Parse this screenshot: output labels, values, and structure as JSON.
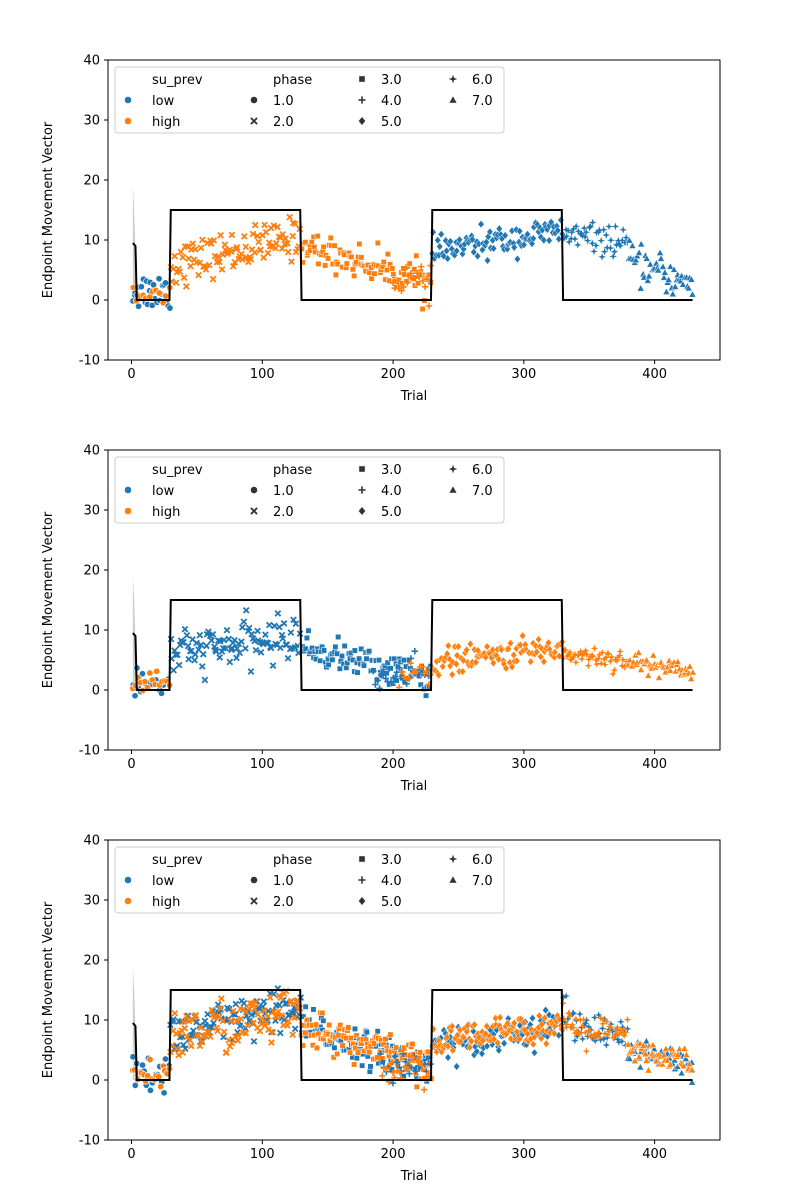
{
  "colors": {
    "low": "#1f77b4",
    "high": "#ff7f0e",
    "target": "#000000",
    "band": "#aaaaaa"
  },
  "legend": {
    "hue_title": "su_prev",
    "hue_entries": [
      {
        "label": "low",
        "key": "low"
      },
      {
        "label": "high",
        "key": "high"
      }
    ],
    "style_title": "phase",
    "style_entries": [
      {
        "label": "1.0",
        "marker": "circle"
      },
      {
        "label": "2.0",
        "marker": "x"
      },
      {
        "label": "3.0",
        "marker": "square"
      },
      {
        "label": "4.0",
        "marker": "plus"
      },
      {
        "label": "5.0",
        "marker": "diamond"
      },
      {
        "label": "6.0",
        "marker": "star"
      },
      {
        "label": "7.0",
        "marker": "triangle"
      }
    ],
    "placement": "upper-left"
  },
  "chart_data": [
    {
      "type": "scatter",
      "xlabel": "Trial",
      "ylabel": "Endpoint Movement Vector",
      "xlim": [
        -18,
        450
      ],
      "ylim": [
        -10,
        40
      ],
      "xticks": [
        0,
        100,
        200,
        300,
        400
      ],
      "yticks": [
        -10,
        0,
        10,
        20,
        30,
        40
      ],
      "target_line": {
        "x": [
          1,
          3,
          4,
          29,
          30,
          129,
          130,
          229,
          230,
          329,
          330,
          429
        ],
        "y": [
          9.5,
          9.0,
          0,
          0,
          15,
          15,
          0,
          0,
          15,
          15,
          0,
          0
        ]
      },
      "early_band": {
        "x": [
          1,
          2,
          3,
          4
        ],
        "ymin": [
          0,
          0,
          0,
          0
        ],
        "ymax": [
          19,
          15,
          8,
          0
        ]
      },
      "phase_series": [
        {
          "phase": "1.0",
          "su_prev": "low",
          "x_range": [
            1,
            29
          ],
          "y_start": 1.5,
          "y_end": 1.5,
          "spread": 1.6,
          "points": 28
        },
        {
          "phase": "1.0",
          "su_prev": "high",
          "x_range": [
            1,
            29
          ],
          "y_start": 0.8,
          "y_end": 1.2,
          "spread": 1.3,
          "points": 12
        },
        {
          "phase": "2.0",
          "su_prev": "high",
          "x_range": [
            30,
            129
          ],
          "y_start": 5.8,
          "y_end": 10.5,
          "spread": 1.7,
          "points": 100
        },
        {
          "phase": "3.0",
          "su_prev": "high",
          "x_range": [
            130,
            229
          ],
          "y_start": 9.0,
          "y_end": 3.0,
          "spread": 1.4,
          "points": 100
        },
        {
          "phase": "4.0",
          "su_prev": "high",
          "x_range": [
            200,
            229
          ],
          "y_start": 4.0,
          "y_end": 2.5,
          "spread": 1.4,
          "points": 20
        },
        {
          "phase": "5.0",
          "su_prev": "low",
          "x_range": [
            230,
            329
          ],
          "y_start": 8.0,
          "y_end": 11.5,
          "spread": 1.2,
          "points": 100
        },
        {
          "phase": "6.0",
          "su_prev": "low",
          "x_range": [
            330,
            379
          ],
          "y_start": 11.0,
          "y_end": 9.5,
          "spread": 1.2,
          "points": 50
        },
        {
          "phase": "7.0",
          "su_prev": "low",
          "x_range": [
            380,
            429
          ],
          "y_start": 6.5,
          "y_end": 2.5,
          "spread": 1.5,
          "points": 50
        }
      ]
    },
    {
      "type": "scatter",
      "xlabel": "Trial",
      "ylabel": "Endpoint Movement Vector",
      "xlim": [
        -18,
        450
      ],
      "ylim": [
        -10,
        40
      ],
      "xticks": [
        0,
        100,
        200,
        300,
        400
      ],
      "yticks": [
        -10,
        0,
        10,
        20,
        30,
        40
      ],
      "target_line": {
        "x": [
          1,
          3,
          4,
          29,
          30,
          129,
          130,
          229,
          230,
          329,
          330,
          429
        ],
        "y": [
          9.5,
          9.0,
          0,
          0,
          15,
          15,
          0,
          0,
          15,
          15,
          0,
          0
        ]
      },
      "early_band": {
        "x": [
          1,
          2,
          3,
          4
        ],
        "ymin": [
          0,
          0,
          0,
          0
        ],
        "ymax": [
          19,
          15,
          8,
          0
        ]
      },
      "phase_series": [
        {
          "phase": "1.0",
          "su_prev": "low",
          "x_range": [
            1,
            29
          ],
          "y_start": 1.0,
          "y_end": 1.0,
          "spread": 1.4,
          "points": 20
        },
        {
          "phase": "1.0",
          "su_prev": "high",
          "x_range": [
            1,
            29
          ],
          "y_start": 1.5,
          "y_end": 1.5,
          "spread": 1.3,
          "points": 16
        },
        {
          "phase": "2.0",
          "su_prev": "low",
          "x_range": [
            30,
            129
          ],
          "y_start": 6.0,
          "y_end": 9.0,
          "spread": 1.8,
          "points": 100
        },
        {
          "phase": "3.0",
          "su_prev": "low",
          "x_range": [
            130,
            229
          ],
          "y_start": 7.0,
          "y_end": 2.0,
          "spread": 1.3,
          "points": 100
        },
        {
          "phase": "4.0",
          "su_prev": "low",
          "x_range": [
            185,
            229
          ],
          "y_start": 2.0,
          "y_end": 2.5,
          "spread": 1.3,
          "points": 30
        },
        {
          "phase": "4.0",
          "su_prev": "high",
          "x_range": [
            205,
            229
          ],
          "y_start": 2.5,
          "y_end": 3.0,
          "spread": 1.2,
          "points": 15
        },
        {
          "phase": "5.0",
          "su_prev": "high",
          "x_range": [
            230,
            329
          ],
          "y_start": 4.5,
          "y_end": 7.0,
          "spread": 1.1,
          "points": 100
        },
        {
          "phase": "6.0",
          "su_prev": "high",
          "x_range": [
            330,
            379
          ],
          "y_start": 6.0,
          "y_end": 5.0,
          "spread": 0.9,
          "points": 50
        },
        {
          "phase": "7.0",
          "su_prev": "high",
          "x_range": [
            380,
            429
          ],
          "y_start": 4.5,
          "y_end": 3.5,
          "spread": 1.0,
          "points": 50
        }
      ]
    },
    {
      "type": "scatter",
      "xlabel": "Trial",
      "ylabel": "Endpoint Movement Vector",
      "xlim": [
        -18,
        450
      ],
      "ylim": [
        -10,
        40
      ],
      "xticks": [
        0,
        100,
        200,
        300,
        400
      ],
      "yticks": [
        -10,
        0,
        10,
        20,
        30,
        40
      ],
      "target_line": {
        "x": [
          1,
          3,
          4,
          29,
          30,
          129,
          130,
          229,
          230,
          329,
          330,
          429
        ],
        "y": [
          9.5,
          9.0,
          0,
          0,
          15,
          15,
          0,
          0,
          15,
          15,
          0,
          0
        ]
      },
      "early_band": {
        "x": [
          1,
          2,
          3,
          4
        ],
        "ymin": [
          0,
          0,
          0,
          0
        ],
        "ymax": [
          19,
          15,
          8,
          0
        ]
      },
      "phase_series": [
        {
          "phase": "1.0",
          "su_prev": "low",
          "x_range": [
            1,
            29
          ],
          "y_start": 1.0,
          "y_end": 1.0,
          "spread": 1.2,
          "points": 20
        },
        {
          "phase": "1.0",
          "su_prev": "high",
          "x_range": [
            1,
            29
          ],
          "y_start": 1.2,
          "y_end": 1.2,
          "spread": 1.2,
          "points": 18
        },
        {
          "phase": "2.0",
          "su_prev": "low",
          "x_range": [
            30,
            129
          ],
          "y_start": 7.5,
          "y_end": 11.5,
          "spread": 2.0,
          "points": 100
        },
        {
          "phase": "2.0",
          "su_prev": "high",
          "x_range": [
            30,
            129
          ],
          "y_start": 7.5,
          "y_end": 11.0,
          "spread": 2.2,
          "points": 100
        },
        {
          "phase": "3.0",
          "su_prev": "low",
          "x_range": [
            130,
            229
          ],
          "y_start": 9.0,
          "y_end": 2.0,
          "spread": 1.5,
          "points": 100
        },
        {
          "phase": "3.0",
          "su_prev": "high",
          "x_range": [
            130,
            229
          ],
          "y_start": 9.0,
          "y_end": 2.0,
          "spread": 1.5,
          "points": 100
        },
        {
          "phase": "4.0",
          "su_prev": "low",
          "x_range": [
            190,
            229
          ],
          "y_start": 2.5,
          "y_end": 2.0,
          "spread": 1.3,
          "points": 25
        },
        {
          "phase": "4.0",
          "su_prev": "high",
          "x_range": [
            190,
            229
          ],
          "y_start": 2.5,
          "y_end": 2.0,
          "spread": 1.3,
          "points": 25
        },
        {
          "phase": "5.0",
          "su_prev": "low",
          "x_range": [
            230,
            329
          ],
          "y_start": 6.0,
          "y_end": 9.0,
          "spread": 1.3,
          "points": 100
        },
        {
          "phase": "5.0",
          "su_prev": "high",
          "x_range": [
            230,
            329
          ],
          "y_start": 6.0,
          "y_end": 9.5,
          "spread": 1.3,
          "points": 100
        },
        {
          "phase": "6.0",
          "su_prev": "low",
          "x_range": [
            330,
            379
          ],
          "y_start": 10.5,
          "y_end": 7.0,
          "spread": 1.4,
          "points": 50
        },
        {
          "phase": "6.0",
          "su_prev": "high",
          "x_range": [
            330,
            379
          ],
          "y_start": 9.0,
          "y_end": 7.0,
          "spread": 1.4,
          "points": 50
        },
        {
          "phase": "7.0",
          "su_prev": "low",
          "x_range": [
            380,
            429
          ],
          "y_start": 5.0,
          "y_end": 2.5,
          "spread": 1.2,
          "points": 50
        },
        {
          "phase": "7.0",
          "su_prev": "high",
          "x_range": [
            380,
            429
          ],
          "y_start": 5.0,
          "y_end": 3.0,
          "spread": 1.2,
          "points": 50
        }
      ]
    }
  ]
}
